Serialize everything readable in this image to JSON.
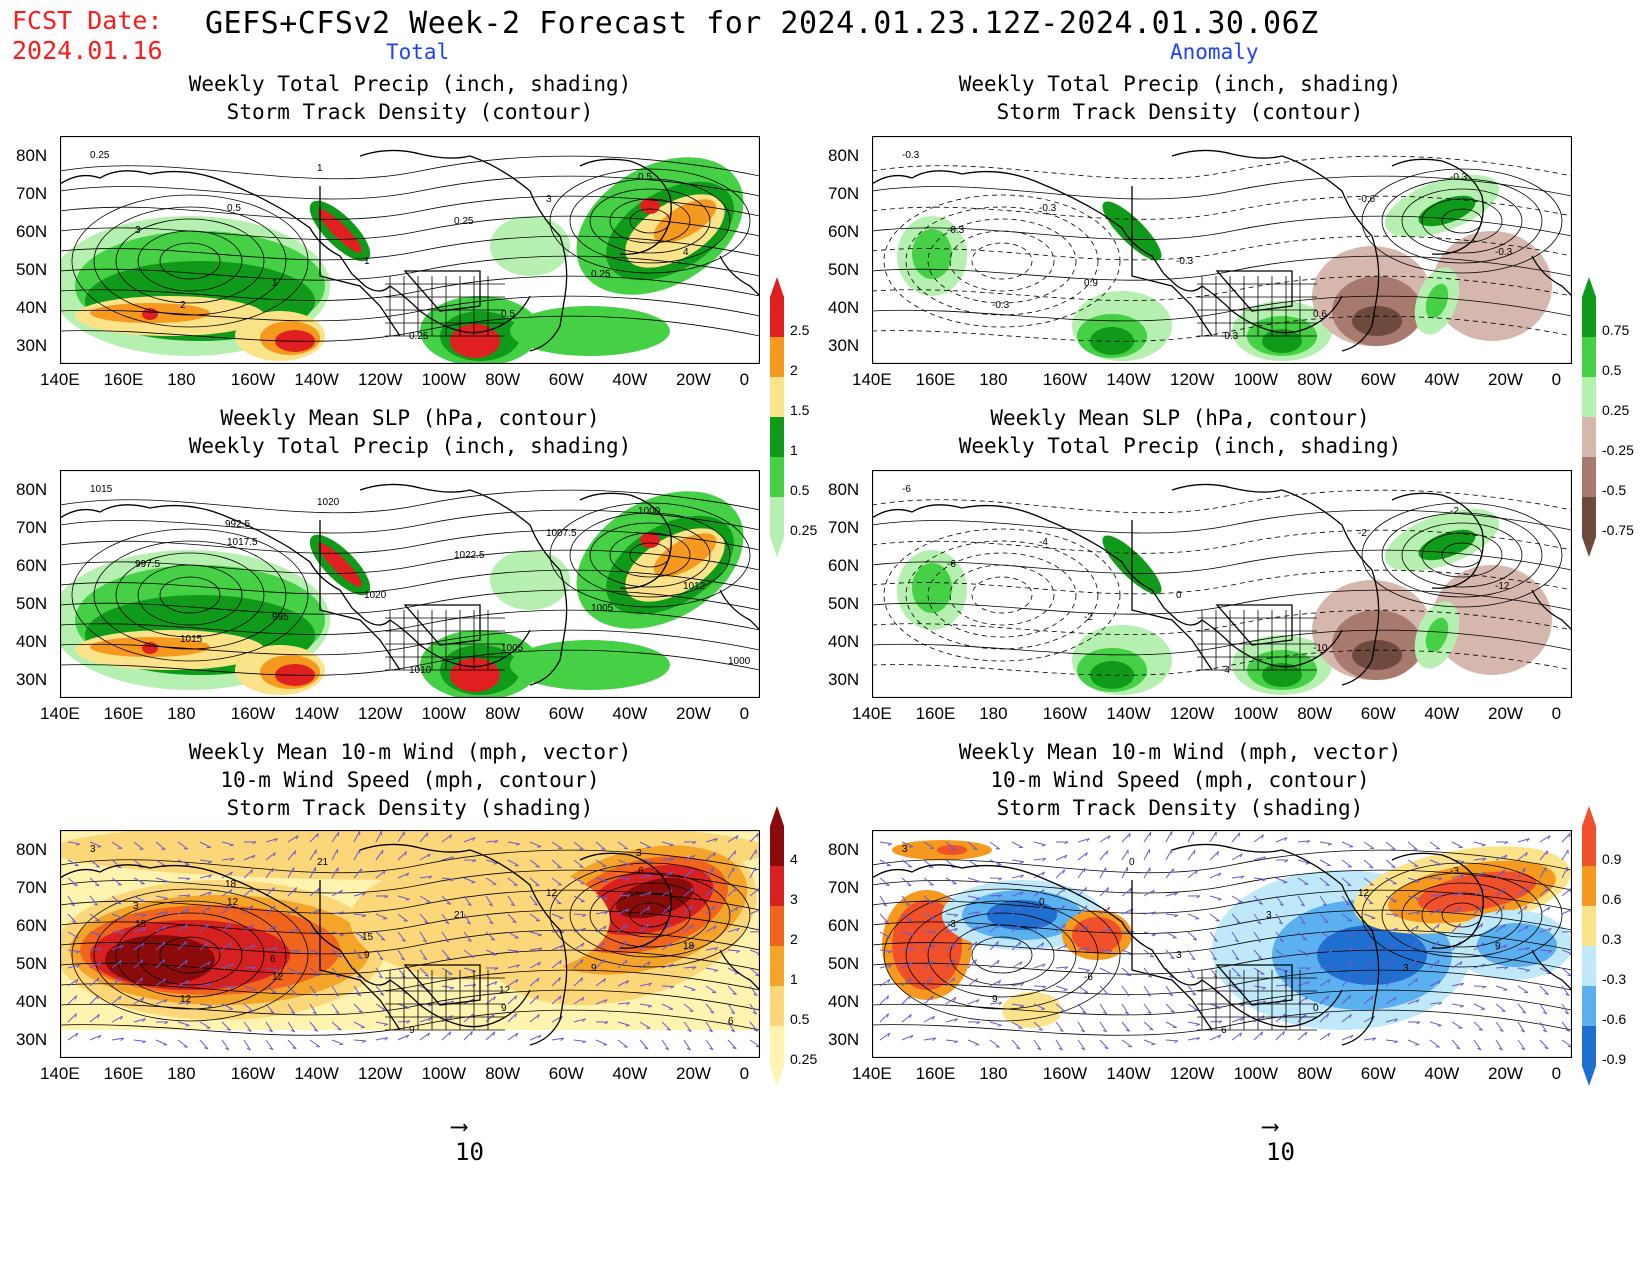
{
  "header": {
    "fcst_label": "FCST Date:",
    "fcst_date": "2024.01.16",
    "title": "GEFS+CFSv2 Week-2 Forecast for 2024.01.23.12Z-2024.01.30.06Z",
    "left_column": "Total",
    "right_column": "Anomaly"
  },
  "axes": {
    "lat_ticks": [
      "80N",
      "70N",
      "60N",
      "50N",
      "40N",
      "30N"
    ],
    "lon_ticks": [
      "140E",
      "160E",
      "180",
      "160W",
      "140W",
      "120W",
      "100W",
      "80W",
      "60W",
      "40W",
      "20W",
      "0"
    ]
  },
  "panels": {
    "p1_title": [
      "Weekly Total Precip (inch, shading)",
      "Storm Track Density (contour)"
    ],
    "p2_title": [
      "Weekly Total Precip (inch, shading)",
      "Storm Track Density (contour)"
    ],
    "p3_title": [
      "Weekly Mean SLP (hPa, contour)",
      "Weekly Total Precip (inch, shading)"
    ],
    "p4_title": [
      "Weekly Mean SLP (hPa, contour)",
      "Weekly Total Precip (inch, shading)"
    ],
    "p5_title": [
      "Weekly Mean 10-m Wind (mph, vector)",
      "10-m Wind Speed (mph, contour)",
      "Storm Track Density (shading)"
    ],
    "p6_title": [
      "Weekly Mean 10-m Wind (mph, vector)",
      "10-m Wind Speed (mph, contour)",
      "Storm Track Density (shading)"
    ]
  },
  "colorbars": {
    "precip_total": {
      "labels": [
        "2.5",
        "2",
        "1.5",
        "1",
        "0.5",
        "0.25"
      ],
      "colors": [
        "#e02020",
        "#f59a1e",
        "#fbe38a",
        "#0f9a1a",
        "#45d045",
        "#b6f0b0"
      ]
    },
    "precip_anom": {
      "labels": [
        "0.75",
        "0.5",
        "0.25",
        "-0.25",
        "-0.5",
        "-0.75"
      ],
      "colors": [
        "#0f9a1a",
        "#45d045",
        "#b6f0b0",
        "#d6b7ad",
        "#a87a6d",
        "#6e4a3e"
      ]
    },
    "storm_total": {
      "labels": [
        "4",
        "3",
        "2",
        "1",
        "0.5",
        "0.25"
      ],
      "colors": [
        "#8b0a0a",
        "#d72020",
        "#f0641e",
        "#f5a42a",
        "#fbd77a",
        "#fff3b0"
      ]
    },
    "storm_anom": {
      "labels": [
        "0.9",
        "0.6",
        "0.3",
        "-0.3",
        "-0.6",
        "-0.9"
      ],
      "colors": [
        "#f0502a",
        "#f59a1e",
        "#fbe38a",
        "#bfe8f8",
        "#5bb0f0",
        "#1f6fd0"
      ]
    }
  },
  "contour_labels": {
    "p1": [
      "0.25",
      "0.5",
      "1",
      "0.5",
      "0.5",
      "3",
      "1",
      "0.25",
      "3",
      "4",
      "2",
      "1",
      "0.25",
      "0.25"
    ],
    "p2": [
      "-0.3",
      "-0.3",
      "-0.3",
      "0.6",
      "-0.3",
      "-0.3",
      "0.9",
      "-0.3",
      "-0.6",
      "-0.3",
      "-0.3"
    ],
    "p3": [
      "1015",
      "1017.5",
      "1020",
      "1005",
      "1000",
      "997.5",
      "995",
      "1010",
      "1007.5",
      "1012",
      "1015",
      "1020",
      "1022.5",
      "1005",
      "1000",
      "992.5"
    ],
    "p4": [
      "-6",
      "-4",
      "0",
      "-10",
      "-2",
      "-6",
      "-2",
      "-4",
      "-2",
      "-12"
    ],
    "p5": [
      "3",
      "12",
      "9",
      "9",
      "6",
      "18",
      "12",
      "9",
      "12",
      "18",
      "12",
      "21",
      "21",
      "9",
      "6",
      "18",
      "15",
      "12",
      "3",
      "3",
      "6"
    ],
    "p6": [
      "3",
      "0",
      "3",
      "0",
      "-3",
      "-3",
      "-6",
      "6",
      "12",
      "9",
      "9",
      "0",
      "3",
      "3"
    ]
  },
  "vector_reference": {
    "left": "10",
    "right": "10"
  }
}
